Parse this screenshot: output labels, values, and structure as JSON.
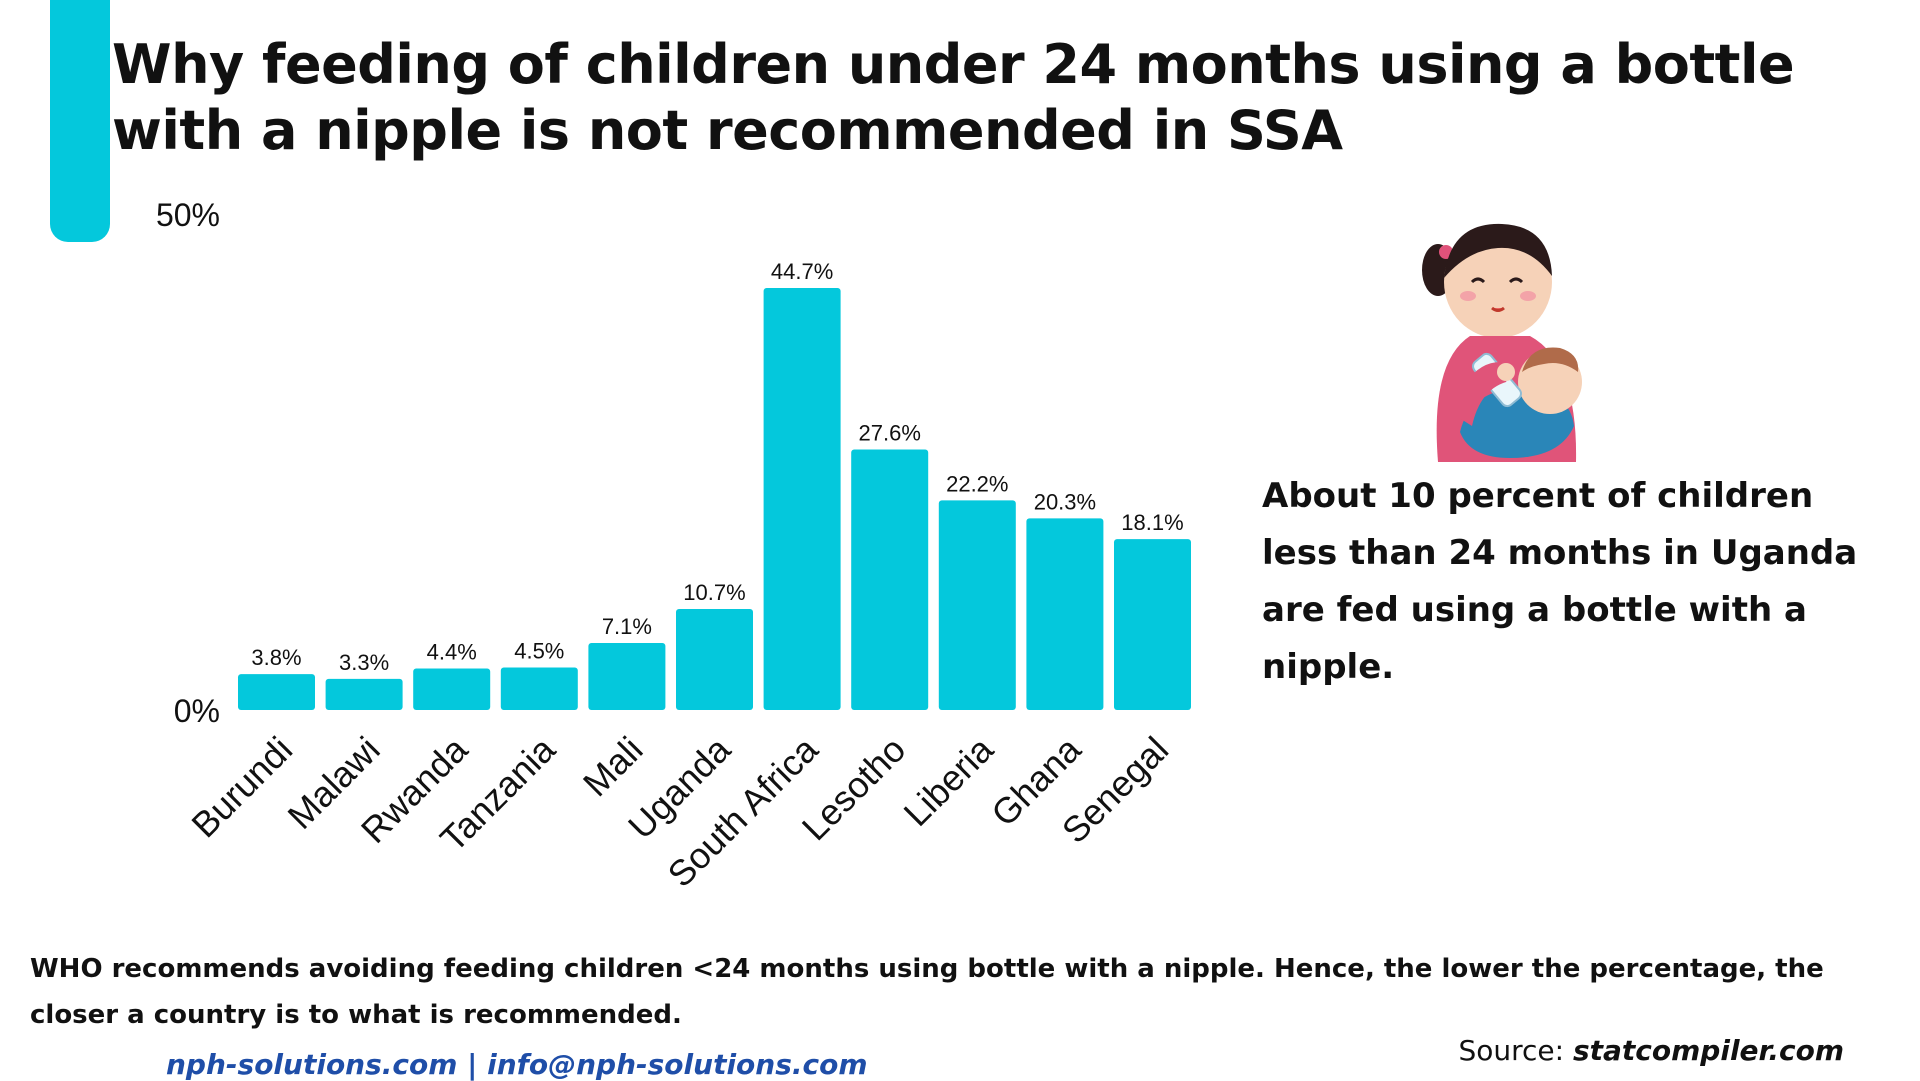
{
  "title": "Why feeding of children under 24 months using a bottle with a nipple is not recommended in SSA",
  "colors": {
    "accent": "#04c8dc",
    "bar": "#04c8dc",
    "text": "#111111",
    "link": "#1f4ea8"
  },
  "illustration": {
    "icon": "mother-bottle-feeding-baby-icon"
  },
  "callout": "About 10 percent of children less than 24 months in Uganda are fed using a bottle with a nipple.",
  "note": "WHO  recommends avoiding feeding children <24 months using bottle with a nipple. Hence, the lower the percentage, the closer a country is to what is recommended.",
  "footer": {
    "links": "nph-solutions.com | info@nph-solutions.com",
    "source_prefix": "Source: ",
    "source_name": "statcompiler.com"
  },
  "chart_data": {
    "type": "bar",
    "categories": [
      "Burundi",
      "Malawi",
      "Rwanda",
      "Tanzania",
      "Mali",
      "Uganda",
      "South Africa",
      "Lesotho",
      "Liberia",
      "Ghana",
      "Senegal"
    ],
    "values": [
      3.8,
      3.3,
      4.4,
      4.5,
      7.1,
      10.7,
      44.7,
      27.6,
      22.2,
      20.3,
      18.1
    ],
    "data_labels": [
      "3.8%",
      "3.3%",
      "4.4%",
      "4.5%",
      "7.1%",
      "10.7%",
      "44.7%",
      "27.6%",
      "22.2%",
      "20.3%",
      "18.1%"
    ],
    "y_tick_labels": [
      "0%",
      "50%"
    ],
    "ylim": [
      0,
      50
    ],
    "title": "",
    "xlabel": "",
    "ylabel": "",
    "grid": false,
    "legend": "none"
  }
}
